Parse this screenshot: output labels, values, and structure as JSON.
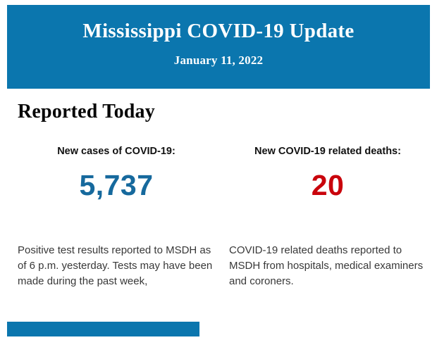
{
  "header": {
    "title": "Mississippi COVID-19 Update",
    "date": "January 11, 2022",
    "background_color": "#0b76ae",
    "text_color": "#ffffff"
  },
  "section": {
    "heading": "Reported Today"
  },
  "stats": [
    {
      "label": "New cases of COVID-19:",
      "value": "5,737",
      "value_color": "#16699d",
      "description": "Positive test results reported to MSDH as of 6 p.m. yesterday. Tests may have been made during the past week,"
    },
    {
      "label": "New COVID-19 related deaths:",
      "value": "20",
      "value_color": "#c9040c",
      "description": "COVID-19 related deaths reported to MSDH from hospitals, medical examiners and coroners."
    }
  ],
  "footer": {
    "bar_color": "#0b76ae"
  }
}
